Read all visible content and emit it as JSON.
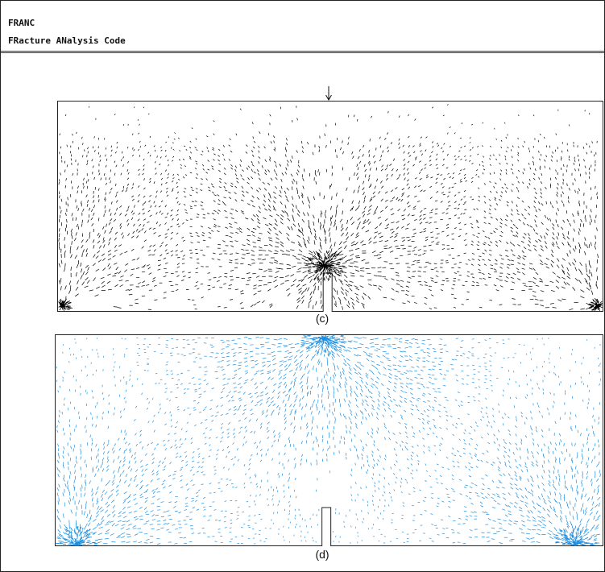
{
  "window": {
    "title": "FRANC",
    "subtitle": "FRacture ANalysis Code"
  },
  "figures": [
    {
      "id": "c",
      "caption": "(c)",
      "color": "#000000",
      "has_load_arrow": true
    },
    {
      "id": "d",
      "caption": "(d)",
      "color": "#1e8fe0",
      "has_load_arrow": false
    }
  ]
}
